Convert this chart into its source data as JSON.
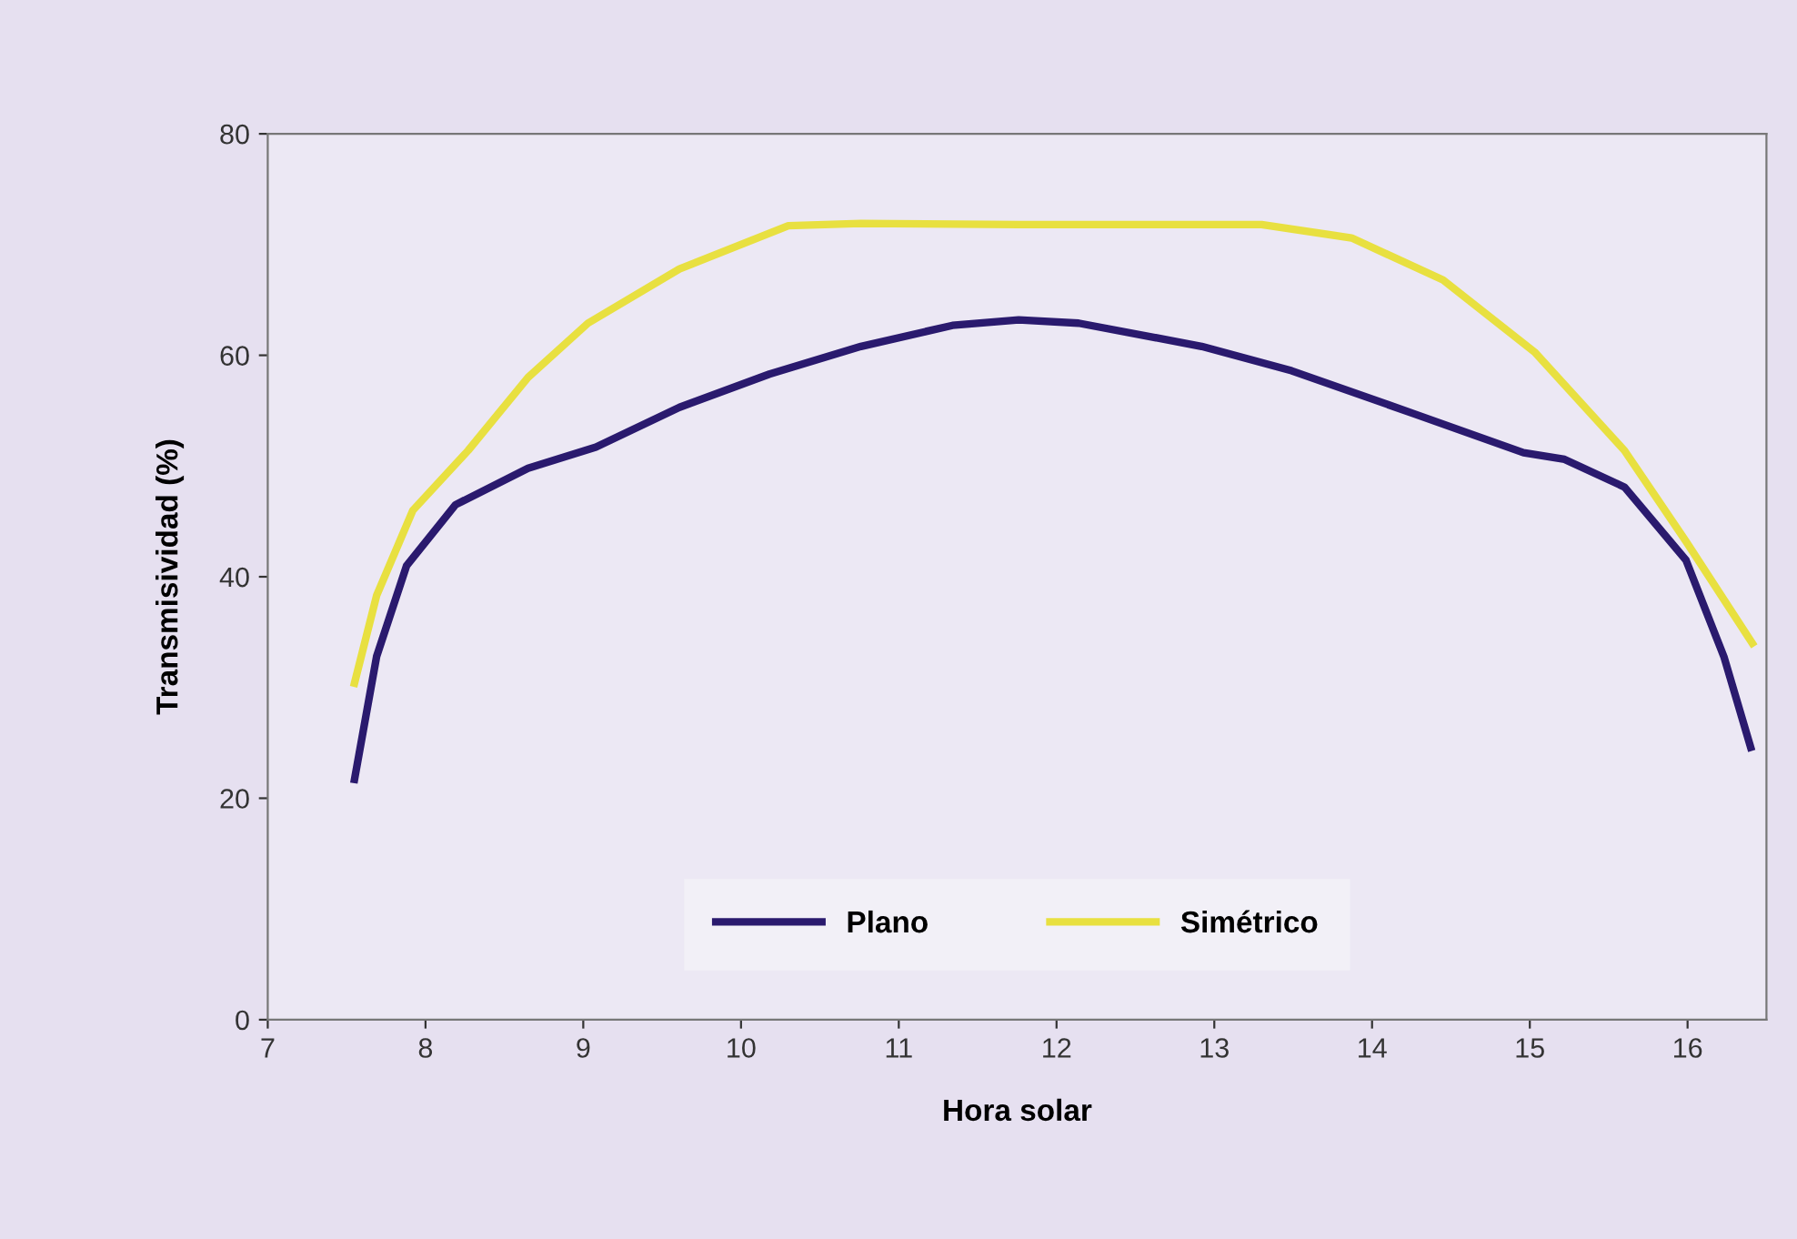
{
  "chart_data": {
    "type": "line",
    "xlabel": "Hora solar",
    "ylabel": "Transmisividad (%)",
    "xlim": [
      7,
      16.5
    ],
    "xticks": [
      7,
      8,
      9,
      10,
      11,
      12,
      13,
      14,
      15,
      16
    ],
    "ylim": [
      0,
      80
    ],
    "yticks": [
      0,
      20,
      40,
      60,
      80
    ],
    "grid": false,
    "legend": "bottom",
    "marker": "none",
    "line_style": "solid",
    "series": [
      {
        "name": "Plano",
        "color": "#2a1a6e",
        "x": [
          7.55,
          7.69,
          7.88,
          8.19,
          8.65,
          9.08,
          9.61,
          10.18,
          10.76,
          11.34,
          11.76,
          12.14,
          12.92,
          13.49,
          14.27,
          14.96,
          15.22,
          15.6,
          15.99,
          16.23,
          16.4
        ],
        "values": [
          21.7,
          32.8,
          41,
          46.5,
          49.8,
          51.7,
          55.3,
          58.3,
          60.8,
          62.7,
          63.2,
          62.9,
          60.8,
          58.6,
          54.7,
          51.2,
          50.6,
          48.1,
          41.5,
          32.8,
          24.6
        ]
      },
      {
        "name": "Simétrico",
        "color": "#e8e040",
        "x": [
          7.55,
          7.69,
          7.92,
          8.27,
          8.65,
          9.03,
          9.61,
          10.3,
          10.76,
          11.76,
          13.3,
          13.87,
          14.45,
          15.03,
          15.6,
          15.99,
          16.41
        ],
        "values": [
          30.4,
          38.3,
          46,
          51.4,
          58,
          62.9,
          67.8,
          71.7,
          71.9,
          71.8,
          71.8,
          70.6,
          66.8,
          60.3,
          51.4,
          43.2,
          34
        ]
      }
    ]
  }
}
